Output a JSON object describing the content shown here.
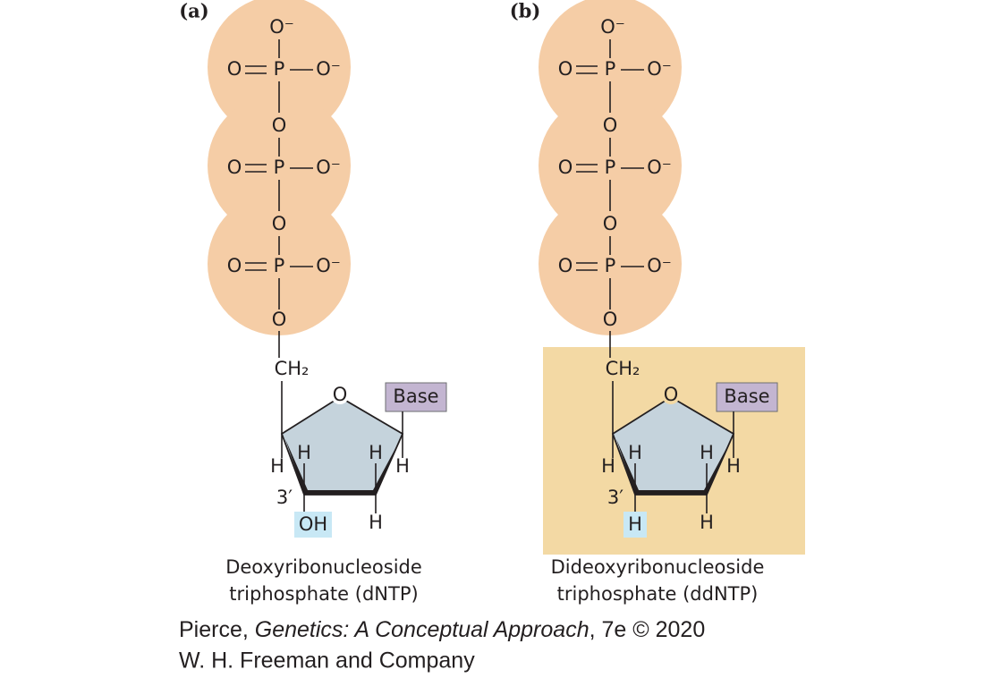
{
  "panels": [
    {
      "label": "(a)",
      "phosphates": [
        {
          "top": "O⁻",
          "left": "O",
          "center": "P",
          "right": "O⁻"
        },
        {
          "top": "O",
          "left": "O",
          "center": "P",
          "right": "O⁻"
        },
        {
          "top": "O",
          "left": "O",
          "center": "P",
          "right": "O⁻"
        }
      ],
      "linker_oxygen": "O",
      "ch2": "CH₂",
      "ring_oxygen": "O",
      "base": "Base",
      "hydrogens": [
        "H",
        "H",
        "H",
        "H",
        "H"
      ],
      "prime": "3′",
      "three_prime_group": "OH",
      "caption": [
        "Deoxyribonucleoside",
        "triphosphate (dNTP)"
      ]
    },
    {
      "label": "(b)",
      "phosphates": [
        {
          "top": "O⁻",
          "left": "O",
          "center": "P",
          "right": "O⁻"
        },
        {
          "top": "O",
          "left": "O",
          "center": "P",
          "right": "O⁻"
        },
        {
          "top": "O",
          "left": "O",
          "center": "P",
          "right": "O⁻"
        }
      ],
      "linker_oxygen": "O",
      "ch2": "CH₂",
      "ring_oxygen": "O",
      "base": "Base",
      "hydrogens": [
        "H",
        "H",
        "H",
        "H",
        "H"
      ],
      "prime": "3′",
      "three_prime_group": "H",
      "caption": [
        "Dideoxyribonucleoside",
        "triphosphate (ddNTP)"
      ]
    }
  ],
  "credit": {
    "author": "Pierce, ",
    "book": "Genetics: A Conceptual Approach",
    "edition": ", 7e © 2020",
    "publisher": "W. H. Freeman and Company"
  }
}
